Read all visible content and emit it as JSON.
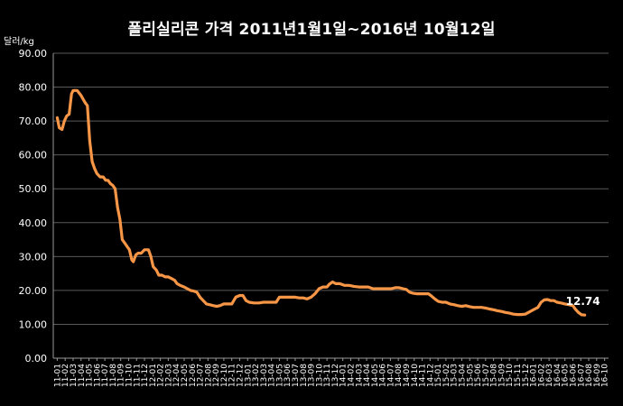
{
  "chart_data": {
    "type": "line",
    "title": "폴리실리콘 가격    2011년1월1일~2016년 10월12일",
    "ylabel": "달러/kg",
    "xlabel": "",
    "ylim": [
      0,
      90
    ],
    "yticks": [
      "0.00",
      "10.00",
      "20.00",
      "30.00",
      "40.00",
      "50.00",
      "60.00",
      "70.00",
      "80.00",
      "90.00"
    ],
    "grid": true,
    "categories": [
      "11-01",
      "11-02",
      "11-03",
      "11-04",
      "11-05",
      "11-06",
      "11-07",
      "11-08",
      "11-09",
      "11-10",
      "11-11",
      "11-12",
      "12-01",
      "12-02",
      "12-03",
      "12-04",
      "12-05",
      "12-06",
      "12-07",
      "12-08",
      "12-09",
      "12-10",
      "12-11",
      "12-12",
      "13-01",
      "13-02",
      "13-03",
      "13-04",
      "13-05",
      "13-06",
      "13-07",
      "13-08",
      "13-09",
      "13-10",
      "13-11",
      "13-12",
      "14-01",
      "14-02",
      "14-03",
      "14-04",
      "14-05",
      "14-06",
      "14-07",
      "14-08",
      "14-09",
      "14-10",
      "14-11",
      "14-12",
      "15-01",
      "15-02",
      "15-03",
      "15-04",
      "15-05",
      "15-06",
      "15-07",
      "15-08",
      "15-09",
      "15-10",
      "15-11",
      "15-12",
      "16-01",
      "16-02",
      "16-03",
      "16-04",
      "16-05",
      "16-06",
      "16-07",
      "16-08",
      "16-09",
      "16-10"
    ],
    "series": [
      {
        "color": "#F79646",
        "points": [
          [
            0.0,
            71.0
          ],
          [
            0.25,
            68.0
          ],
          [
            0.6,
            67.5
          ],
          [
            0.9,
            70.0
          ],
          [
            1.2,
            71.5
          ],
          [
            1.5,
            72.0
          ],
          [
            1.8,
            78.0
          ],
          [
            2.0,
            79.0
          ],
          [
            2.5,
            79.0
          ],
          [
            3.0,
            77.5
          ],
          [
            3.5,
            75.5
          ],
          [
            3.8,
            74.5
          ],
          [
            4.1,
            64.0
          ],
          [
            4.4,
            58.0
          ],
          [
            4.7,
            56.0
          ],
          [
            5.0,
            54.5
          ],
          [
            5.4,
            53.5
          ],
          [
            5.8,
            53.5
          ],
          [
            6.1,
            52.5
          ],
          [
            6.4,
            52.5
          ],
          [
            6.7,
            51.5
          ],
          [
            7.0,
            51.0
          ],
          [
            7.3,
            50.0
          ],
          [
            7.6,
            44.5
          ],
          [
            7.9,
            41.0
          ],
          [
            8.2,
            35.0
          ],
          [
            8.5,
            34.0
          ],
          [
            8.8,
            33.0
          ],
          [
            9.1,
            32.0
          ],
          [
            9.4,
            29.0
          ],
          [
            9.6,
            28.5
          ],
          [
            9.9,
            30.5
          ],
          [
            10.2,
            31.0
          ],
          [
            10.6,
            31.0
          ],
          [
            11.0,
            32.0
          ],
          [
            11.5,
            32.0
          ],
          [
            11.8,
            30.0
          ],
          [
            12.1,
            27.0
          ],
          [
            12.5,
            26.0
          ],
          [
            12.8,
            24.5
          ],
          [
            13.2,
            24.5
          ],
          [
            13.6,
            24.0
          ],
          [
            14.0,
            24.0
          ],
          [
            14.4,
            23.5
          ],
          [
            14.8,
            23.0
          ],
          [
            15.1,
            22.0
          ],
          [
            15.5,
            21.5
          ],
          [
            16.0,
            21.0
          ],
          [
            16.4,
            20.5
          ],
          [
            16.8,
            20.0
          ],
          [
            17.2,
            19.8
          ],
          [
            17.6,
            19.5
          ],
          [
            18.0,
            18.0
          ],
          [
            18.4,
            17.0
          ],
          [
            18.8,
            16.0
          ],
          [
            19.2,
            15.8
          ],
          [
            19.7,
            15.5
          ],
          [
            20.1,
            15.3
          ],
          [
            20.5,
            15.5
          ],
          [
            21.0,
            16.0
          ],
          [
            21.5,
            16.0
          ],
          [
            22.0,
            16.0
          ],
          [
            22.5,
            18.0
          ],
          [
            23.0,
            18.5
          ],
          [
            23.4,
            18.5
          ],
          [
            23.8,
            17.0
          ],
          [
            24.2,
            16.5
          ],
          [
            24.8,
            16.3
          ],
          [
            25.4,
            16.3
          ],
          [
            26.0,
            16.5
          ],
          [
            26.5,
            16.5
          ],
          [
            27.0,
            16.5
          ],
          [
            27.6,
            16.5
          ],
          [
            28.0,
            18.0
          ],
          [
            28.5,
            18.0
          ],
          [
            29.0,
            18.0
          ],
          [
            29.5,
            18.0
          ],
          [
            30.0,
            18.0
          ],
          [
            30.5,
            17.8
          ],
          [
            31.0,
            17.8
          ],
          [
            31.5,
            17.5
          ],
          [
            32.0,
            18.0
          ],
          [
            32.5,
            19.0
          ],
          [
            33.0,
            20.5
          ],
          [
            33.5,
            21.0
          ],
          [
            34.0,
            21.0
          ],
          [
            34.3,
            21.8
          ],
          [
            34.7,
            22.5
          ],
          [
            35.1,
            22.0
          ],
          [
            35.6,
            22.0
          ],
          [
            36.2,
            21.5
          ],
          [
            36.8,
            21.5
          ],
          [
            37.4,
            21.2
          ],
          [
            38.0,
            21.0
          ],
          [
            38.6,
            21.0
          ],
          [
            39.2,
            21.0
          ],
          [
            39.8,
            20.5
          ],
          [
            40.4,
            20.5
          ],
          [
            41.0,
            20.5
          ],
          [
            41.6,
            20.5
          ],
          [
            42.1,
            20.5
          ],
          [
            42.6,
            20.8
          ],
          [
            43.1,
            20.8
          ],
          [
            43.6,
            20.5
          ],
          [
            44.0,
            20.3
          ],
          [
            44.4,
            19.5
          ],
          [
            44.8,
            19.2
          ],
          [
            45.3,
            19.0
          ],
          [
            45.8,
            19.0
          ],
          [
            46.3,
            19.0
          ],
          [
            46.8,
            19.0
          ],
          [
            47.2,
            18.3
          ],
          [
            47.6,
            17.5
          ],
          [
            48.0,
            16.8
          ],
          [
            48.5,
            16.5
          ],
          [
            49.0,
            16.5
          ],
          [
            49.5,
            16.0
          ],
          [
            50.0,
            15.8
          ],
          [
            50.5,
            15.5
          ],
          [
            51.0,
            15.3
          ],
          [
            51.5,
            15.5
          ],
          [
            52.0,
            15.2
          ],
          [
            52.5,
            15.0
          ],
          [
            53.0,
            15.0
          ],
          [
            53.5,
            15.0
          ],
          [
            54.0,
            14.8
          ],
          [
            54.5,
            14.5
          ],
          [
            55.0,
            14.3
          ],
          [
            55.5,
            14.0
          ],
          [
            56.0,
            13.8
          ],
          [
            56.5,
            13.5
          ],
          [
            57.0,
            13.3
          ],
          [
            57.5,
            13.0
          ],
          [
            58.0,
            12.9
          ],
          [
            58.5,
            12.9
          ],
          [
            59.0,
            13.0
          ],
          [
            59.4,
            13.5
          ],
          [
            59.8,
            14.0
          ],
          [
            60.2,
            14.5
          ],
          [
            60.6,
            15.0
          ],
          [
            61.0,
            16.5
          ],
          [
            61.4,
            17.2
          ],
          [
            61.8,
            17.3
          ],
          [
            62.2,
            17.0
          ],
          [
            62.6,
            17.0
          ],
          [
            63.0,
            16.5
          ],
          [
            63.5,
            16.3
          ],
          [
            64.0,
            16.0
          ],
          [
            64.5,
            15.8
          ],
          [
            65.0,
            15.5
          ],
          [
            65.3,
            14.5
          ],
          [
            65.7,
            13.5
          ],
          [
            66.1,
            12.8
          ],
          [
            66.5,
            12.74
          ]
        ]
      }
    ],
    "data_labels": [
      {
        "category_index": 66.5,
        "value": 12.74,
        "text": "12.74"
      }
    ]
  }
}
